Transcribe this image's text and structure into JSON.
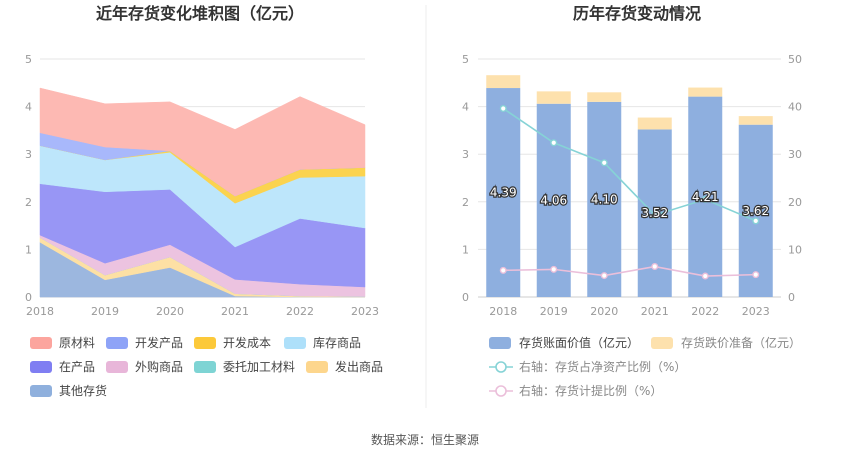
{
  "source": "数据来源：恒生聚源",
  "chart_data": [
    {
      "type": "area",
      "stacked": true,
      "title": "近年存货变化堆积图（亿元）",
      "x": [
        "2018",
        "2019",
        "2020",
        "2021",
        "2022",
        "2023"
      ],
      "yticks": [
        "0",
        "1",
        "2",
        "3",
        "4",
        "5"
      ],
      "ylim": [
        0,
        5
      ],
      "grid": true,
      "legend_position": "bottom",
      "series": [
        {
          "name": "其他存货",
          "color": "#9cb7df",
          "values": [
            1.15,
            0.36,
            0.62,
            0.02,
            0.0,
            0.0
          ]
        },
        {
          "name": "发出商品",
          "color": "#fde0a4",
          "values": [
            0.1,
            0.1,
            0.22,
            0.05,
            0.02,
            0.01
          ]
        },
        {
          "name": "委托加工材料",
          "color": "#8fd8d8",
          "values": [
            0.0,
            0.0,
            0.0,
            0.0,
            0.0,
            0.0
          ]
        },
        {
          "name": "外购商品",
          "color": "#ecc3e0",
          "values": [
            0.05,
            0.25,
            0.26,
            0.3,
            0.25,
            0.2
          ]
        },
        {
          "name": "在产品",
          "color": "#9896f5",
          "values": [
            1.08,
            1.5,
            1.16,
            0.68,
            1.38,
            1.24
          ]
        },
        {
          "name": "库存商品",
          "color": "#bde6fb",
          "values": [
            0.8,
            0.67,
            0.78,
            0.92,
            0.86,
            1.09
          ]
        },
        {
          "name": "开发成本",
          "color": "#fbd34f",
          "values": [
            0.0,
            0.0,
            0.03,
            0.15,
            0.17,
            0.18
          ]
        },
        {
          "name": "开发产品",
          "color": "#a8b8fb",
          "values": [
            0.27,
            0.27,
            0.0,
            0.0,
            0.0,
            0.0
          ]
        },
        {
          "name": "原材料",
          "color": "#fdb9b3",
          "values": [
            0.94,
            0.91,
            1.03,
            1.4,
            1.53,
            0.9
          ]
        }
      ],
      "legend": [
        {
          "name": "原材料",
          "color": "#fca59e"
        },
        {
          "name": "开发产品",
          "color": "#8ea3f7"
        },
        {
          "name": "开发成本",
          "color": "#fcc93a"
        },
        {
          "name": "库存商品",
          "color": "#aee0fa"
        },
        {
          "name": "在产品",
          "color": "#7f7ef2"
        },
        {
          "name": "外购商品",
          "color": "#e8b6d9"
        },
        {
          "name": "委托加工材料",
          "color": "#7ed4d4"
        },
        {
          "name": "发出商品",
          "color": "#fdd68d"
        },
        {
          "name": "其他存货",
          "color": "#8fb0dd"
        }
      ]
    },
    {
      "type": "bar",
      "stacked": true,
      "title": "历年存货变动情况",
      "categories": [
        "2018",
        "2019",
        "2020",
        "2021",
        "2022",
        "2023"
      ],
      "ylim": [
        0,
        5
      ],
      "yticks": [
        "0",
        "1",
        "2",
        "3",
        "4",
        "5"
      ],
      "y2lim": [
        0,
        50
      ],
      "y2ticks": [
        "0",
        "10",
        "20",
        "30",
        "40",
        "50"
      ],
      "grid": true,
      "legend_position": "bottom",
      "series": [
        {
          "name": "存货账面价值（亿元）",
          "color": "#8eafdf",
          "values": [
            4.39,
            4.06,
            4.1,
            3.52,
            4.21,
            3.62
          ],
          "labels": [
            "4.39",
            "4.06",
            "4.10",
            "3.52",
            "4.21",
            "3.62"
          ]
        },
        {
          "name": "存货跌价准备（亿元）",
          "color": "#fde1ad",
          "values": [
            0.27,
            0.26,
            0.2,
            0.25,
            0.19,
            0.18
          ]
        }
      ],
      "lines": [
        {
          "name": "右轴：存货占净资产比例（%）",
          "axis": "right",
          "color": "#86d3d6",
          "values": [
            39.6,
            32.4,
            28.2,
            17.2,
            20.5,
            16.0
          ]
        },
        {
          "name": "右轴：存货计提比例（%）",
          "axis": "right",
          "color": "#ebbfda",
          "values": [
            5.6,
            5.8,
            4.5,
            6.4,
            4.4,
            4.7
          ]
        }
      ]
    }
  ]
}
